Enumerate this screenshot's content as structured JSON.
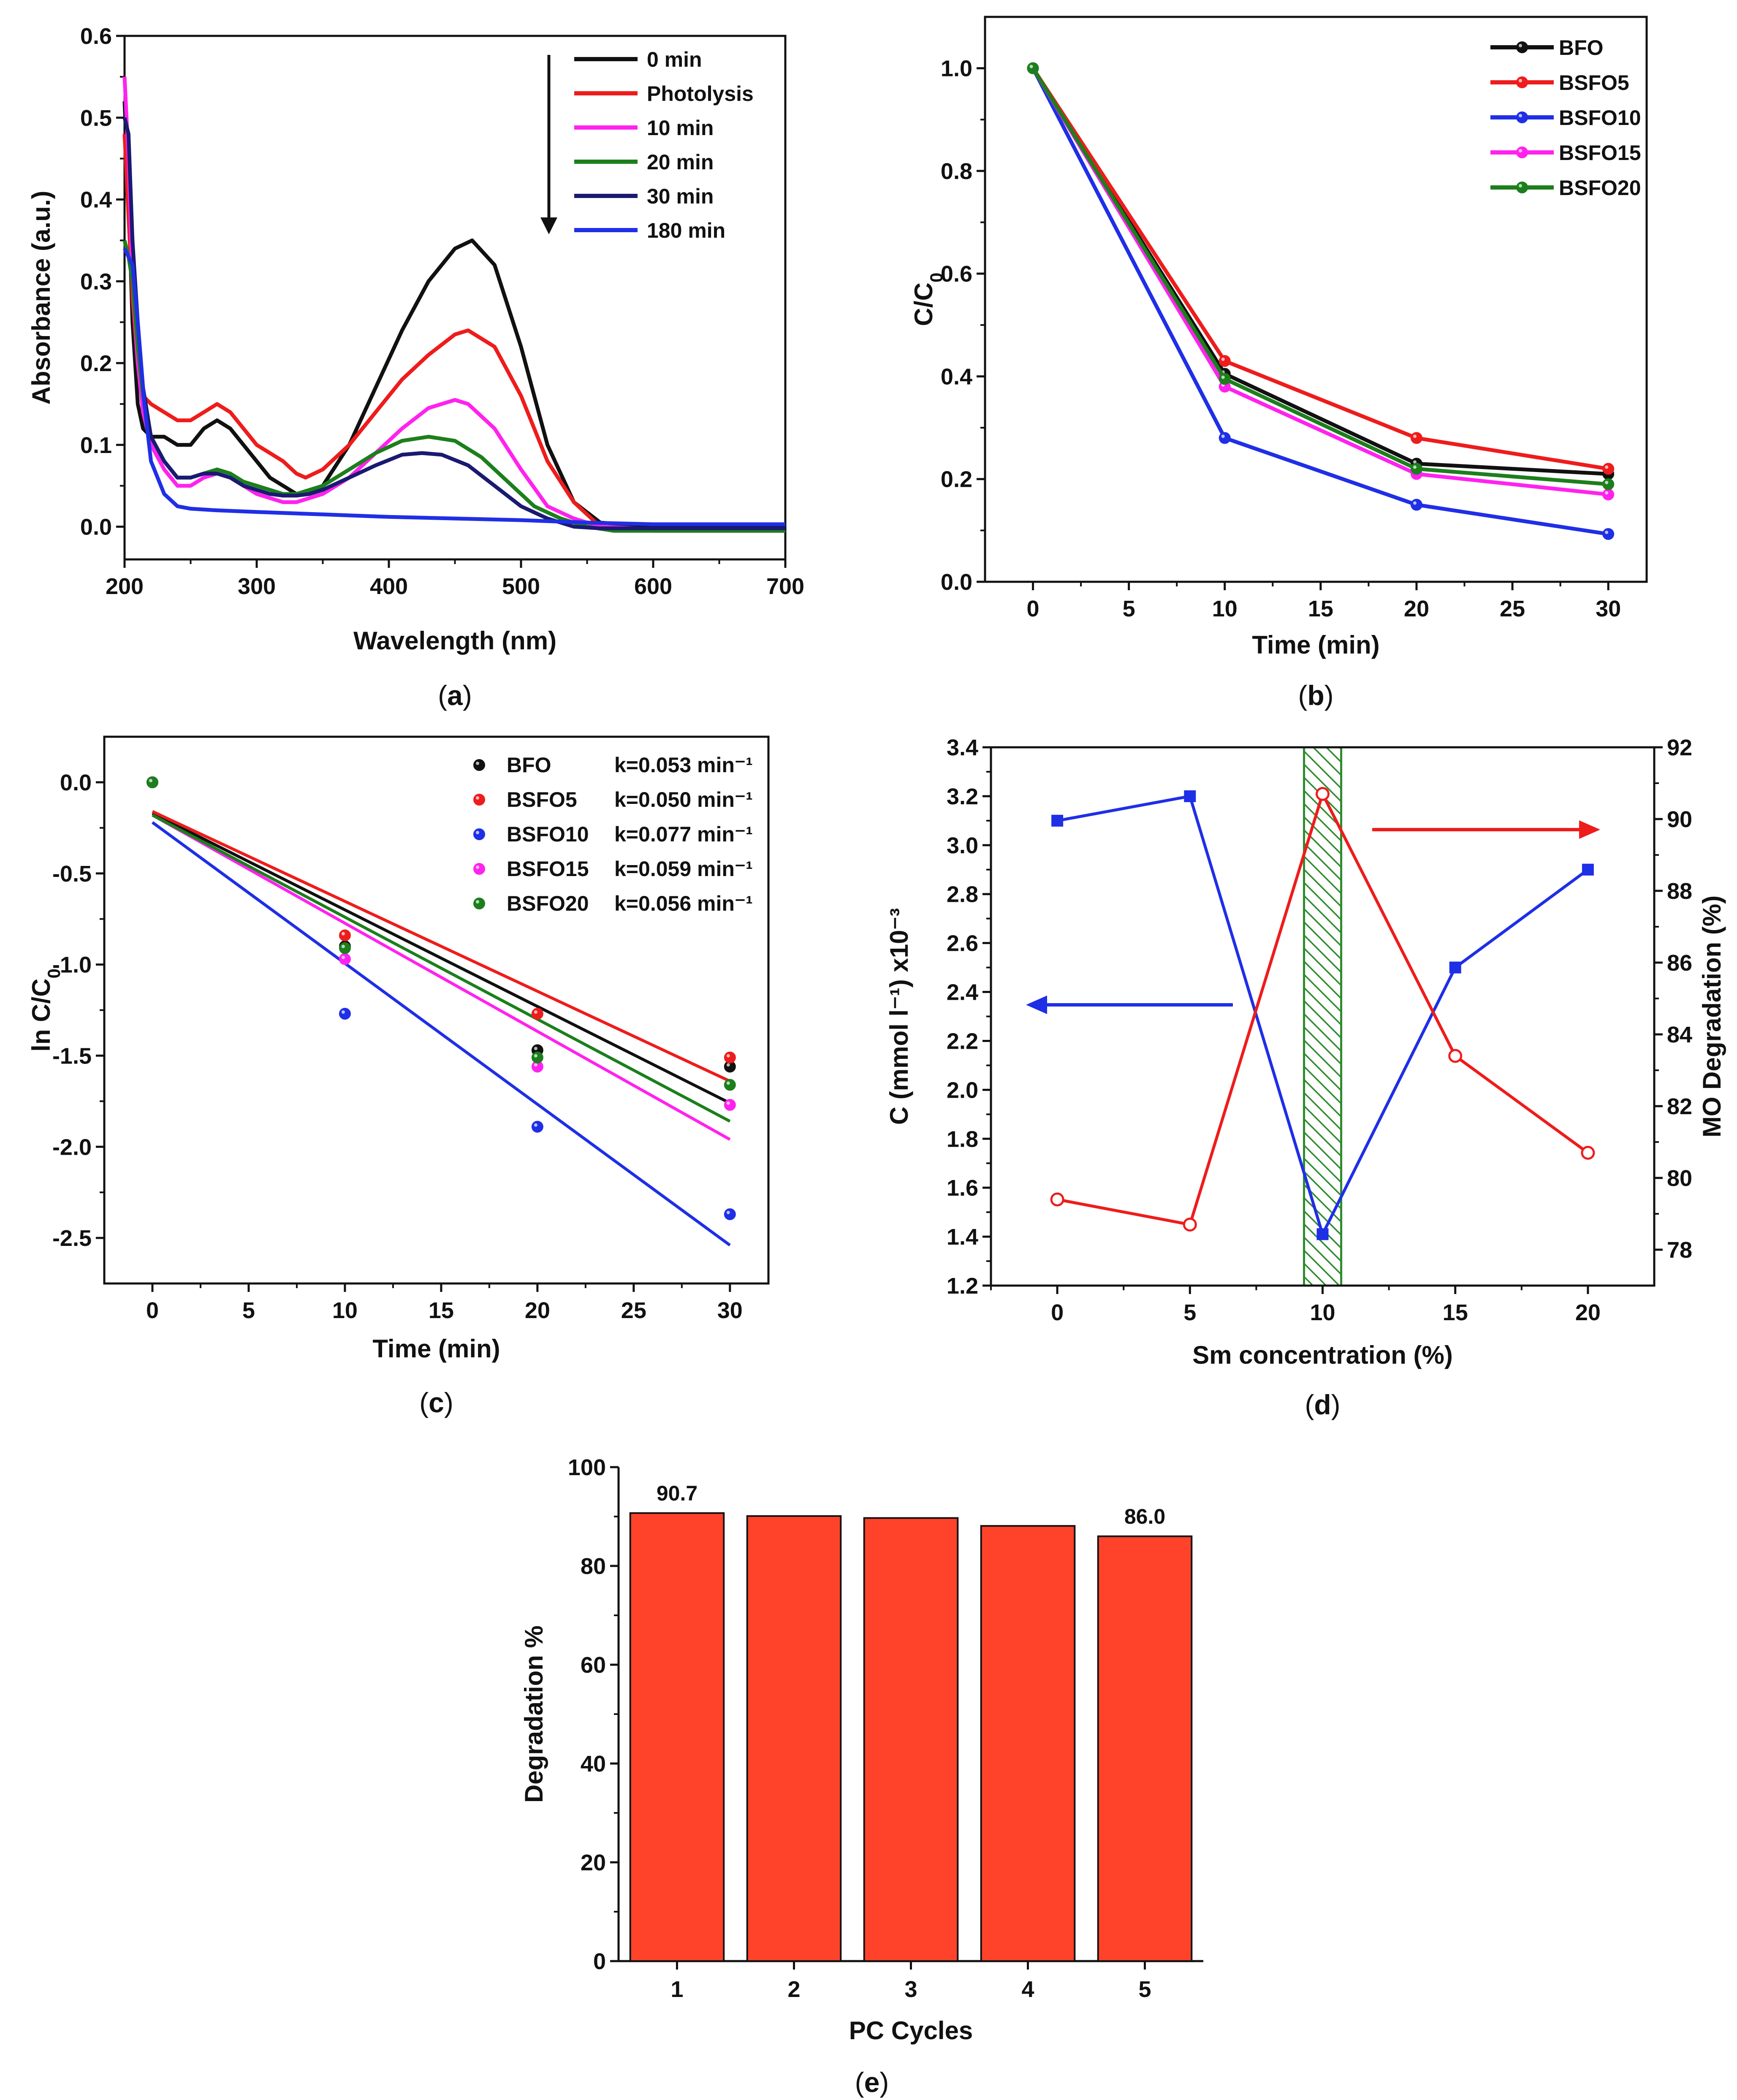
{
  "colors": {
    "black": "#111111",
    "red": "#ee1c1c",
    "blue": "#1f2fe6",
    "magenta": "#ff22ee",
    "green": "#1c7f1c",
    "navy": "#1a1a72",
    "bar": "#ff432b",
    "hatch": "#2e8b2e"
  },
  "chart_data": [
    {
      "id": "a",
      "panel_label": "a",
      "type": "line",
      "title": "",
      "xlabel": "Wavelength (nm)",
      "ylabel": "Absorbance (a.u.)",
      "xlim": [
        200,
        700
      ],
      "ylim": [
        -0.04,
        0.6
      ],
      "xticks": [
        200,
        300,
        400,
        500,
        600,
        700
      ],
      "yticks": [
        0.0,
        0.1,
        0.2,
        0.3,
        0.4,
        0.5,
        0.6
      ],
      "ytick_labels": [
        "0.0",
        "0.1",
        "0.2",
        "0.3",
        "0.4",
        "0.5",
        "0.6"
      ],
      "series": [
        {
          "name": "0 min",
          "color": "#111111",
          "x": [
            200,
            203,
            206,
            210,
            214,
            220,
            230,
            240,
            250,
            260,
            270,
            280,
            290,
            300,
            310,
            320,
            330,
            340,
            350,
            370,
            390,
            410,
            430,
            450,
            463,
            480,
            500,
            520,
            540,
            560,
            600,
            650,
            700
          ],
          "y": [
            0.52,
            0.4,
            0.25,
            0.15,
            0.12,
            0.11,
            0.11,
            0.1,
            0.1,
            0.12,
            0.13,
            0.12,
            0.1,
            0.08,
            0.06,
            0.05,
            0.04,
            0.04,
            0.05,
            0.1,
            0.17,
            0.24,
            0.3,
            0.34,
            0.35,
            0.32,
            0.22,
            0.1,
            0.03,
            0.005,
            0.0,
            0.0,
            0.0
          ]
        },
        {
          "name": "Photolysis",
          "color": "#ee1c1c",
          "x": [
            200,
            203,
            206,
            210,
            214,
            220,
            230,
            240,
            250,
            260,
            270,
            280,
            290,
            300,
            310,
            320,
            330,
            337,
            350,
            370,
            390,
            410,
            430,
            450,
            460,
            480,
            500,
            520,
            540,
            560,
            600,
            650,
            700
          ],
          "y": [
            0.48,
            0.38,
            0.28,
            0.2,
            0.16,
            0.15,
            0.14,
            0.13,
            0.13,
            0.14,
            0.15,
            0.14,
            0.12,
            0.1,
            0.09,
            0.08,
            0.065,
            0.06,
            0.07,
            0.1,
            0.14,
            0.18,
            0.21,
            0.235,
            0.24,
            0.22,
            0.16,
            0.08,
            0.03,
            0.0,
            -0.005,
            -0.005,
            -0.005
          ]
        },
        {
          "name": "10 min",
          "color": "#ff22ee",
          "x": [
            200,
            203,
            206,
            210,
            214,
            220,
            230,
            240,
            250,
            260,
            270,
            280,
            290,
            300,
            310,
            320,
            330,
            340,
            350,
            370,
            390,
            410,
            430,
            450,
            460,
            480,
            500,
            520,
            540,
            560,
            600,
            650,
            700
          ],
          "y": [
            0.55,
            0.45,
            0.3,
            0.2,
            0.14,
            0.1,
            0.07,
            0.05,
            0.05,
            0.06,
            0.065,
            0.06,
            0.05,
            0.04,
            0.035,
            0.03,
            0.03,
            0.035,
            0.04,
            0.06,
            0.09,
            0.12,
            0.145,
            0.155,
            0.15,
            0.12,
            0.07,
            0.025,
            0.01,
            0.0,
            -0.003,
            -0.003,
            -0.003
          ]
        },
        {
          "name": "20 min",
          "color": "#1c7f1c",
          "x": [
            200,
            203,
            206,
            210,
            214,
            220,
            230,
            240,
            250,
            260,
            270,
            280,
            290,
            300,
            310,
            320,
            330,
            340,
            350,
            370,
            390,
            410,
            430,
            450,
            470,
            490,
            510,
            530,
            550,
            570,
            600,
            650,
            700
          ],
          "y": [
            0.35,
            0.33,
            0.3,
            0.22,
            0.16,
            0.11,
            0.08,
            0.06,
            0.06,
            0.065,
            0.07,
            0.065,
            0.055,
            0.05,
            0.045,
            0.04,
            0.04,
            0.045,
            0.05,
            0.07,
            0.09,
            0.105,
            0.11,
            0.105,
            0.085,
            0.055,
            0.025,
            0.01,
            0.0,
            -0.005,
            -0.005,
            -0.005,
            -0.005
          ]
        },
        {
          "name": "30 min",
          "color": "#1a1a72",
          "x": [
            200,
            203,
            206,
            210,
            214,
            220,
            230,
            240,
            250,
            260,
            270,
            280,
            290,
            300,
            310,
            320,
            330,
            340,
            350,
            370,
            390,
            410,
            425,
            440,
            460,
            480,
            500,
            520,
            540,
            560,
            600,
            650,
            700
          ],
          "y": [
            0.5,
            0.48,
            0.35,
            0.25,
            0.17,
            0.11,
            0.08,
            0.06,
            0.06,
            0.065,
            0.065,
            0.06,
            0.05,
            0.045,
            0.04,
            0.038,
            0.038,
            0.04,
            0.045,
            0.06,
            0.075,
            0.088,
            0.09,
            0.088,
            0.075,
            0.05,
            0.025,
            0.01,
            0.0,
            -0.002,
            -0.002,
            -0.002,
            -0.002
          ]
        },
        {
          "name": "180 min",
          "color": "#1f2fe6",
          "x": [
            200,
            203,
            206,
            210,
            215,
            220,
            230,
            240,
            250,
            270,
            300,
            350,
            400,
            450,
            500,
            550,
            600,
            650,
            700
          ],
          "y": [
            0.34,
            0.33,
            0.32,
            0.25,
            0.15,
            0.08,
            0.04,
            0.025,
            0.022,
            0.02,
            0.018,
            0.015,
            0.012,
            0.01,
            0.008,
            0.005,
            0.003,
            0.003,
            0.003
          ]
        }
      ],
      "arrow": "downward arrow beside legend",
      "legend": "top-right"
    },
    {
      "id": "b",
      "panel_label": "b",
      "type": "line",
      "title": "",
      "xlabel": "Time (min)",
      "ylabel": "C/C0",
      "xlim": [
        -2.5,
        32
      ],
      "ylim": [
        0,
        1.1
      ],
      "xticks": [
        0,
        5,
        10,
        15,
        20,
        25,
        30
      ],
      "yticks": [
        0.0,
        0.2,
        0.4,
        0.6,
        0.8,
        1.0
      ],
      "ytick_labels": [
        "0.0",
        "0.2",
        "0.4",
        "0.6",
        "0.8",
        "1.0"
      ],
      "x": [
        0,
        10,
        20,
        30
      ],
      "series": [
        {
          "name": "BFO",
          "color": "#111111",
          "values": [
            1.0,
            0.405,
            0.23,
            0.21
          ]
        },
        {
          "name": "BSFO5",
          "color": "#ee1c1c",
          "values": [
            1.0,
            0.43,
            0.28,
            0.22
          ]
        },
        {
          "name": "BSFO10",
          "color": "#1f2fe6",
          "values": [
            1.0,
            0.28,
            0.15,
            0.093
          ]
        },
        {
          "name": "BSFO15",
          "color": "#ff22ee",
          "values": [
            1.0,
            0.38,
            0.21,
            0.17
          ]
        },
        {
          "name": "BSFO20",
          "color": "#1c7f1c",
          "values": [
            1.0,
            0.395,
            0.22,
            0.19
          ]
        }
      ],
      "legend": "top-right"
    },
    {
      "id": "c",
      "panel_label": "c",
      "type": "scatter",
      "title": "",
      "xlabel": "Time (min)",
      "ylabel": "ln C/C0",
      "xlim": [
        -2.5,
        32
      ],
      "ylim": [
        -2.75,
        0.25
      ],
      "xticks": [
        0,
        5,
        10,
        15,
        20,
        25,
        30
      ],
      "yticks": [
        0.0,
        -0.5,
        -1.0,
        -1.5,
        -2.0,
        -2.5
      ],
      "ytick_labels": [
        "0.0",
        "-0.5",
        "-1.0",
        "-1.5",
        "-2.0",
        "-2.5"
      ],
      "x": [
        0,
        10,
        20,
        30
      ],
      "series": [
        {
          "name": "BFO",
          "k_label": "k=0.053 min⁻¹",
          "color": "#111111",
          "points": [
            0,
            -0.9,
            -1.47,
            -1.56
          ],
          "fit": [
            -0.17,
            -1.76
          ]
        },
        {
          "name": "BSFO5",
          "k_label": "k=0.050 min⁻¹",
          "color": "#ee1c1c",
          "points": [
            0,
            -0.84,
            -1.27,
            -1.51
          ],
          "fit": [
            -0.16,
            -1.64
          ]
        },
        {
          "name": "BSFO10",
          "k_label": "k=0.077 min⁻¹",
          "color": "#1f2fe6",
          "points": [
            0,
            -1.27,
            -1.89,
            -2.37
          ],
          "fit": [
            -0.22,
            -2.54
          ]
        },
        {
          "name": "BSFO15",
          "k_label": "k=0.059 min⁻¹",
          "color": "#ff22ee",
          "points": [
            0,
            -0.97,
            -1.56,
            -1.77
          ],
          "fit": [
            -0.18,
            -1.96
          ]
        },
        {
          "name": "BSFO20",
          "k_label": "k=0.056 min⁻¹",
          "color": "#1c7f1c",
          "points": [
            0,
            -0.91,
            -1.51,
            -1.66
          ],
          "fit": [
            -0.18,
            -1.86
          ]
        }
      ],
      "legend": "top-right"
    },
    {
      "id": "d",
      "panel_label": "d",
      "type": "line",
      "title": "",
      "xlabel": "Sm concentration (%)",
      "ylabel": "C (mmol l⁻¹) x10⁻³",
      "y2label": "MO Degradation (%)",
      "xlim": [
        -2.5,
        22.5
      ],
      "ylim": [
        1.2,
        3.4
      ],
      "y2lim": [
        77,
        92
      ],
      "xticks": [
        0,
        5,
        10,
        15,
        20
      ],
      "yticks": [
        1.2,
        1.4,
        1.6,
        1.8,
        2.0,
        2.2,
        2.4,
        2.6,
        2.8,
        3.0,
        3.2,
        3.4
      ],
      "ytick_labels": [
        "1.2",
        "1.4",
        "1.6",
        "1.8",
        "2.0",
        "2.2",
        "2.4",
        "2.6",
        "2.8",
        "3.0",
        "3.2",
        "3.4"
      ],
      "y2ticks": [
        78,
        80,
        82,
        84,
        86,
        88,
        90,
        92
      ],
      "y2tick_labels": [
        "78",
        "80",
        "82",
        "84",
        "86",
        "88",
        "90",
        "92"
      ],
      "x": [
        0,
        5,
        10,
        15,
        20
      ],
      "series": [
        {
          "name": "C (mmol l⁻¹)",
          "axis": "left",
          "color": "#1f2fe6",
          "marker": "square",
          "values": [
            3.1,
            3.2,
            1.41,
            2.5,
            2.9
          ]
        },
        {
          "name": "MO Degradation (%)",
          "axis": "right",
          "color": "#ee1c1c",
          "marker": "open-circle",
          "values": [
            79.4,
            78.7,
            90.7,
            83.4,
            80.7
          ]
        }
      ],
      "highlight_band": [
        9.3,
        10.7
      ]
    },
    {
      "id": "e",
      "panel_label": "e",
      "type": "bar",
      "title": "",
      "xlabel": "PC Cycles",
      "ylabel": "Degradation %",
      "ylim": [
        0,
        100
      ],
      "yticks": [
        0,
        20,
        40,
        60,
        80,
        100
      ],
      "ytick_labels": [
        "0",
        "20",
        "40",
        "60",
        "80",
        "100"
      ],
      "categories": [
        "1",
        "2",
        "3",
        "4",
        "5"
      ],
      "values": [
        90.7,
        90.1,
        89.7,
        88.1,
        86.0
      ],
      "data_labels": [
        "90.7",
        "",
        "",
        "",
        "86.0"
      ],
      "color": "#ff432b"
    }
  ]
}
